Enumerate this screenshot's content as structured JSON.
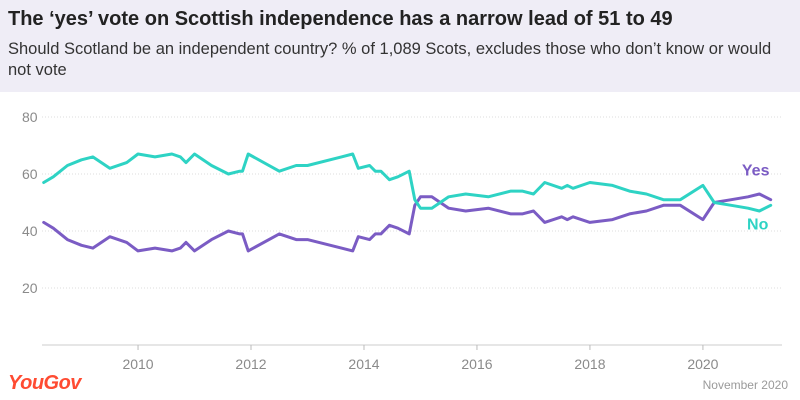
{
  "header": {
    "title": "The ‘yes’ vote on Scottish independence has a narrow lead of 51 to 49",
    "subtitle": "Should Scotland be an independent country? % of 1,089 Scots, excludes those who don’t know or would not vote"
  },
  "footer": {
    "logo": "YouGov",
    "date": "November 2020"
  },
  "colors": {
    "yes": "#7b5cc4",
    "no": "#2ed3c4",
    "grid": "#dddddd",
    "header_bg": "#efedf6",
    "brand": "#ff4b32"
  },
  "chart_data": {
    "type": "line",
    "title": "The ‘yes’ vote on Scottish independence has a narrow lead of 51 to 49",
    "subtitle": "Should Scotland be an independent country? % of 1,089 Scots, excludes those who don’t know or would not vote",
    "xlabel": "",
    "ylabel": "",
    "xlim": [
      2008.3,
      2021.4
    ],
    "ylim": [
      0,
      80
    ],
    "yticks": [
      20,
      40,
      60,
      80
    ],
    "xticks": [
      2010,
      2012,
      2014,
      2016,
      2018,
      2020
    ],
    "grid": true,
    "legend": "inline labels at right end of lines",
    "series": [
      {
        "name": "Yes",
        "color": "#7b5cc4",
        "x": [
          2008.33,
          2008.5,
          2008.75,
          2009.0,
          2009.2,
          2009.5,
          2009.8,
          2010.0,
          2010.3,
          2010.6,
          2010.75,
          2010.85,
          2011.0,
          2011.3,
          2011.6,
          2011.8,
          2011.85,
          2011.95,
          2012.5,
          2012.8,
          2013.0,
          2013.6,
          2013.8,
          2013.9,
          2014.1,
          2014.2,
          2014.3,
          2014.45,
          2014.6,
          2014.8,
          2014.9,
          2015.0,
          2015.2,
          2015.5,
          2015.8,
          2016.2,
          2016.6,
          2016.8,
          2017.0,
          2017.2,
          2017.5,
          2017.6,
          2017.7,
          2018.0,
          2018.4,
          2018.7,
          2019.0,
          2019.3,
          2019.6,
          2020.0,
          2020.2,
          2020.5,
          2020.8,
          2021.0,
          2021.2
        ],
        "values": [
          43,
          41,
          37,
          35,
          34,
          38,
          36,
          33,
          34,
          33,
          34,
          36,
          33,
          37,
          40,
          39,
          39,
          33,
          39,
          37,
          37,
          34,
          33,
          38,
          37,
          39,
          39,
          42,
          41,
          39,
          49,
          52,
          52,
          48,
          47,
          48,
          46,
          46,
          47,
          43,
          45,
          44,
          45,
          43,
          44,
          46,
          47,
          49,
          49,
          44,
          50,
          51,
          52,
          53,
          51
        ]
      },
      {
        "name": "No",
        "color": "#2ed3c4",
        "x": [
          2008.33,
          2008.5,
          2008.75,
          2009.0,
          2009.2,
          2009.5,
          2009.8,
          2010.0,
          2010.3,
          2010.6,
          2010.75,
          2010.85,
          2011.0,
          2011.3,
          2011.6,
          2011.8,
          2011.85,
          2011.95,
          2012.5,
          2012.8,
          2013.0,
          2013.6,
          2013.8,
          2013.9,
          2014.1,
          2014.2,
          2014.3,
          2014.45,
          2014.6,
          2014.8,
          2014.9,
          2015.0,
          2015.2,
          2015.5,
          2015.8,
          2016.2,
          2016.6,
          2016.8,
          2017.0,
          2017.2,
          2017.5,
          2017.6,
          2017.7,
          2018.0,
          2018.4,
          2018.7,
          2019.0,
          2019.3,
          2019.6,
          2020.0,
          2020.2,
          2020.5,
          2020.8,
          2021.0,
          2021.2
        ],
        "values": [
          57,
          59,
          63,
          65,
          66,
          62,
          64,
          67,
          66,
          67,
          66,
          64,
          67,
          63,
          60,
          61,
          61,
          67,
          61,
          63,
          63,
          66,
          67,
          62,
          63,
          61,
          61,
          58,
          59,
          61,
          51,
          48,
          48,
          52,
          53,
          52,
          54,
          54,
          53,
          57,
          55,
          56,
          55,
          57,
          56,
          54,
          53,
          51,
          51,
          56,
          50,
          49,
          48,
          47,
          49
        ]
      }
    ],
    "labels": [
      {
        "series": "Yes",
        "text": "Yes"
      },
      {
        "series": "No",
        "text": "No"
      }
    ]
  }
}
